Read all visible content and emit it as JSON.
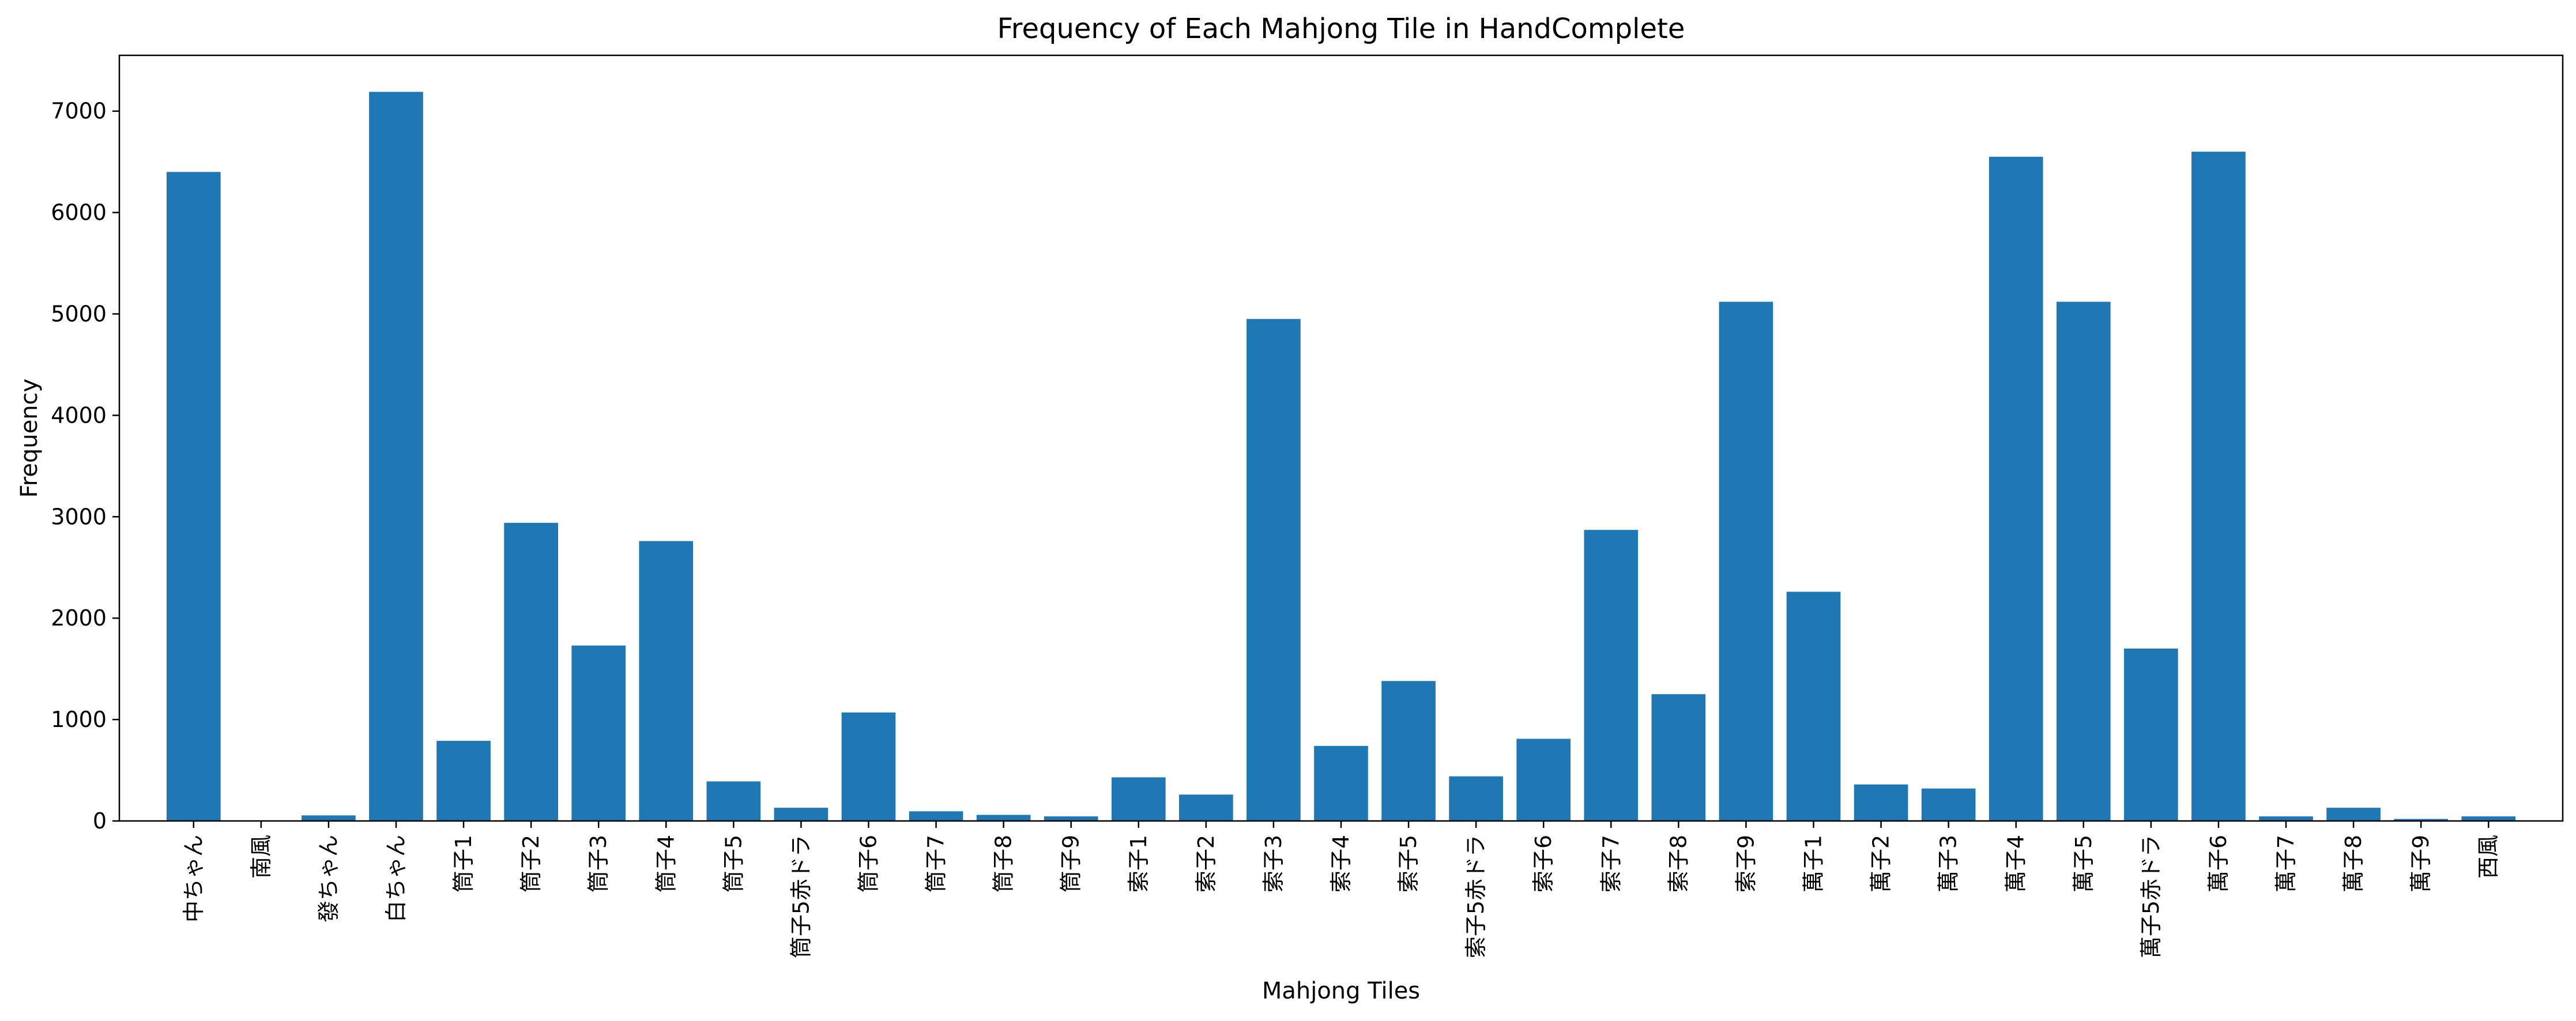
{
  "chart_data": {
    "type": "bar",
    "title": "Frequency of Each Mahjong Tile in HandComplete",
    "xlabel": "Mahjong Tiles",
    "ylabel": "Frequency",
    "ylim": [
      0,
      7550
    ],
    "yticks": [
      0,
      1000,
      2000,
      3000,
      4000,
      5000,
      6000,
      7000
    ],
    "grid": false,
    "bar_color": "#1f77b4",
    "categories": [
      "中ちゃん",
      "南風",
      "發ちゃん",
      "白ちゃん",
      "筒子1",
      "筒子2",
      "筒子3",
      "筒子4",
      "筒子5",
      "筒子5赤ドラ",
      "筒子6",
      "筒子7",
      "筒子8",
      "筒子9",
      "索子1",
      "索子2",
      "索子3",
      "索子4",
      "索子5",
      "索子5赤ドラ",
      "索子6",
      "索子7",
      "索子8",
      "索子9",
      "萬子1",
      "萬子2",
      "萬子3",
      "萬子4",
      "萬子5",
      "萬子5赤ドラ",
      "萬子6",
      "萬子7",
      "萬子8",
      "萬子9",
      "西風"
    ],
    "values": [
      6400,
      5,
      55,
      7190,
      790,
      2940,
      1730,
      2760,
      390,
      130,
      1070,
      95,
      60,
      45,
      430,
      260,
      4950,
      740,
      1380,
      440,
      810,
      2870,
      1250,
      5120,
      2260,
      360,
      320,
      6550,
      5120,
      1700,
      6600,
      45,
      130,
      20,
      45
    ]
  }
}
